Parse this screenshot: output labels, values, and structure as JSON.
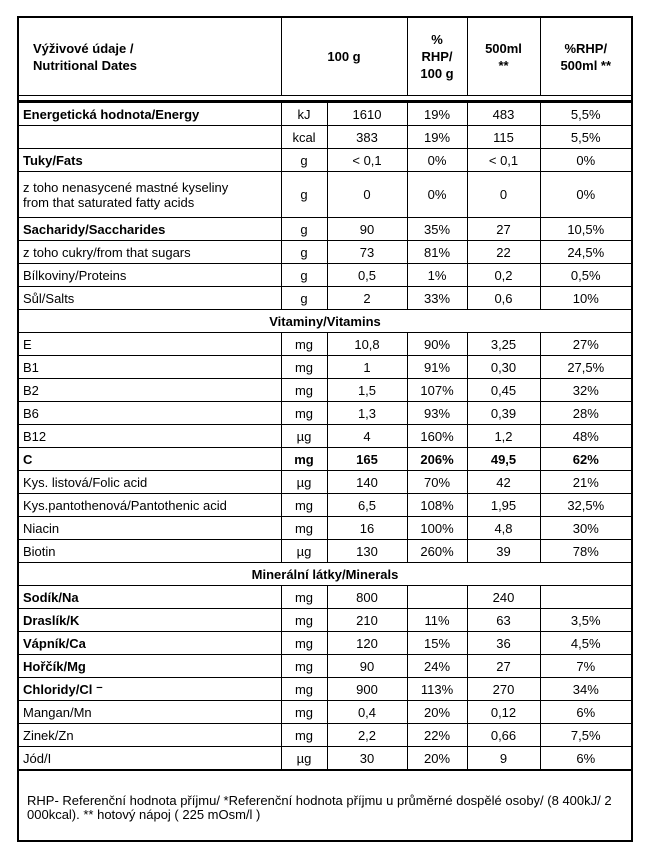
{
  "header": {
    "cells": [
      "Výživové údaje /\nNutritional Dates",
      "100 g",
      "%\nRHP/\n100 g",
      "500ml\n**",
      "%RHP/\n500ml **"
    ]
  },
  "body": {
    "rows": [
      {
        "cells": [
          "Energetická  hodnota/Energy",
          "kJ",
          "1610",
          "19%",
          "483",
          "5,5%"
        ],
        "bold": "name"
      },
      {
        "cells": [
          null,
          "kcal",
          "383",
          "19%",
          "115",
          "5,5%"
        ]
      },
      {
        "cells": [
          "Tuky/Fats",
          "g",
          "< 0,1",
          "0%",
          "< 0,1",
          "0%"
        ],
        "bold": "name"
      },
      {
        "cells": [
          "z toho nenasycené mastné kyseliny\nfrom that saturated fatty acids",
          "g",
          "0",
          "0%",
          "0",
          "0%"
        ],
        "lines": 2
      },
      {
        "cells": [
          "Sacharidy/Saccharides",
          "g",
          "90",
          "35%",
          "27",
          "10,5%"
        ],
        "bold": "name"
      },
      {
        "cells": [
          "z toho cukry/from that sugars",
          "g",
          "73",
          "81%",
          "22",
          "24,5%"
        ]
      },
      {
        "cells": [
          "Bílkoviny/Proteins",
          "g",
          "0,5",
          "1%",
          "0,2",
          "0,5%"
        ]
      },
      {
        "cells": [
          "Sůl/Salts",
          "g",
          "2",
          "33%",
          "0,6",
          "10%"
        ]
      },
      {
        "section": "Vitaminy/Vitamins"
      },
      {
        "cells": [
          "E",
          "mg",
          "10,8",
          "90%",
          "3,25",
          "27%"
        ]
      },
      {
        "cells": [
          "B1",
          "mg",
          "1",
          "91%",
          "0,30",
          "27,5%"
        ]
      },
      {
        "cells": [
          "B2",
          "mg",
          "1,5",
          "107%",
          "0,45",
          "32%"
        ]
      },
      {
        "cells": [
          "B6",
          "mg",
          "1,3",
          "93%",
          "0,39",
          "28%"
        ]
      },
      {
        "cells": [
          "B12",
          "µg",
          "4",
          "160%",
          "1,2",
          "48%"
        ]
      },
      {
        "cells": [
          "C",
          "mg",
          "165",
          "206%",
          "49,5",
          "62%"
        ],
        "bold": "row"
      },
      {
        "cells": [
          "Kys. listová/Folic acid",
          "µg",
          "140",
          "70%",
          "42",
          "21%"
        ]
      },
      {
        "cells": [
          "Kys.pantothenová/Pantothenic acid",
          "mg",
          "6,5",
          "108%",
          "1,95",
          "32,5%"
        ]
      },
      {
        "cells": [
          "Niacin",
          "mg",
          "16",
          "100%",
          "4,8",
          "30%"
        ]
      },
      {
        "cells": [
          "Biotin",
          "µg",
          "130",
          "260%",
          "39",
          "78%"
        ]
      },
      {
        "section": "Minerální látky/Minerals"
      },
      {
        "cells": [
          "Sodík/Na",
          "mg",
          "800",
          null,
          "240",
          null
        ],
        "bold": "name"
      },
      {
        "cells": [
          "Draslík/K",
          "mg",
          "210",
          "11%",
          "63",
          "3,5%"
        ],
        "bold": "name"
      },
      {
        "cells": [
          "Vápník/Ca",
          "mg",
          "120",
          "15%",
          "36",
          "4,5%"
        ],
        "bold": "name"
      },
      {
        "cells": [
          "Hořčík/Mg",
          "mg",
          "90",
          "24%",
          "27",
          "7%"
        ],
        "bold": "name"
      },
      {
        "cells": [
          "Chloridy/Cl ⁻",
          "mg",
          "900",
          "113%",
          "270",
          "34%"
        ],
        "bold": "name"
      },
      {
        "cells": [
          "Mangan/Mn",
          "mg",
          "0,4",
          "20%",
          "0,12",
          "6%"
        ]
      },
      {
        "cells": [
          "Zinek/Zn",
          "mg",
          "2,2",
          "22%",
          "0,66",
          "7,5%"
        ]
      },
      {
        "cells": [
          "Jód/I",
          "µg",
          "30",
          "20%",
          "9",
          "6%"
        ]
      }
    ]
  },
  "footer": {
    "text": "RHP- Referenční hodnota příjmu/ *Referenční hodnota příjmu  u průměrné dospělé osoby/  (8 400kJ/ 2 000kcal).  ** hotový nápoj ( 225 mOsm/l )"
  }
}
